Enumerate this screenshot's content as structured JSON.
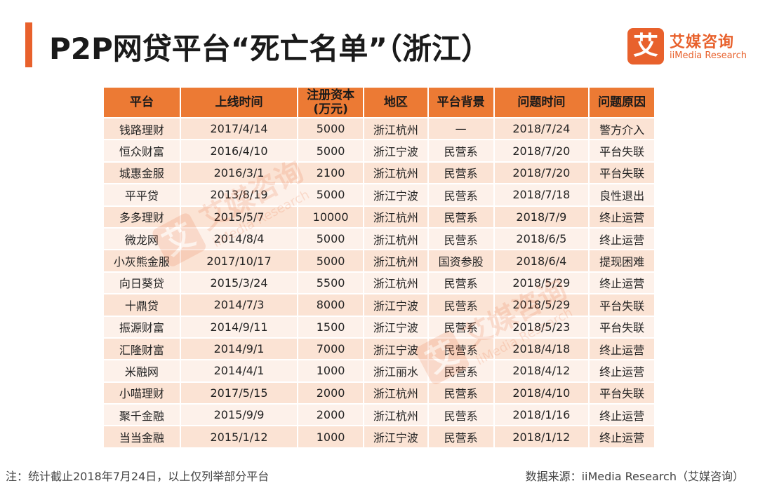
{
  "title": "P2P网贷平台“死亡名单”（浙江）",
  "logo": {
    "mark": "艾",
    "cn": "艾媒咨询",
    "en": "iiMedia Research"
  },
  "watermark": {
    "mark": "艾",
    "cn": "艾媒咨询",
    "en": "iiMedia Research"
  },
  "colors": {
    "accent": "#e8612c",
    "header": "#ec7a34",
    "row_odd": "#fbe3d4",
    "row_even": "#fdf1ea"
  },
  "table": {
    "headers": [
      "平台",
      "上线时间",
      "注册资本\n(万元)",
      "地区",
      "平台背景",
      "问题时间",
      "问题原因"
    ],
    "rows": [
      [
        "钱路理财",
        "2017/4/14",
        "5000",
        "浙江杭州",
        "—",
        "2018/7/24",
        "警方介入"
      ],
      [
        "恒众财富",
        "2016/4/10",
        "5000",
        "浙江宁波",
        "民营系",
        "2018/7/20",
        "平台失联"
      ],
      [
        "城惠金服",
        "2016/3/1",
        "2100",
        "浙江杭州",
        "民营系",
        "2018/7/20",
        "平台失联"
      ],
      [
        "平平贷",
        "2013/8/19",
        "5000",
        "浙江宁波",
        "民营系",
        "2018/7/18",
        "良性退出"
      ],
      [
        "多多理财",
        "2015/5/7",
        "10000",
        "浙江杭州",
        "民营系",
        "2018/7/9",
        "终止运营"
      ],
      [
        "微龙网",
        "2014/8/4",
        "5000",
        "浙江杭州",
        "民营系",
        "2018/6/5",
        "终止运营"
      ],
      [
        "小灰熊金服",
        "2017/10/17",
        "5000",
        "浙江杭州",
        "国资参股",
        "2018/6/4",
        "提现困难"
      ],
      [
        "向日葵贷",
        "2015/3/24",
        "5500",
        "浙江杭州",
        "民营系",
        "2018/5/29",
        "终止运营"
      ],
      [
        "十鼎贷",
        "2014/7/3",
        "8000",
        "浙江宁波",
        "民营系",
        "2018/5/29",
        "平台失联"
      ],
      [
        "振源财富",
        "2014/9/11",
        "1500",
        "浙江宁波",
        "民营系",
        "2018/5/23",
        "平台失联"
      ],
      [
        "汇隆财富",
        "2014/9/1",
        "7000",
        "浙江宁波",
        "民营系",
        "2018/4/18",
        "终止运营"
      ],
      [
        "米融网",
        "2014/4/1",
        "1000",
        "浙江丽水",
        "民营系",
        "2018/4/12",
        "终止运营"
      ],
      [
        "小喵理财",
        "2017/5/15",
        "2000",
        "浙江杭州",
        "民营系",
        "2018/4/10",
        "平台失联"
      ],
      [
        "聚千金融",
        "2015/9/9",
        "2000",
        "浙江杭州",
        "民营系",
        "2018/1/16",
        "终止运营"
      ],
      [
        "当当金融",
        "2015/1/12",
        "1000",
        "浙江宁波",
        "民营系",
        "2018/1/12",
        "终止运营"
      ]
    ]
  },
  "footer": {
    "note": "注：统计截止2018年7月24日，以上仅列举部分平台",
    "source": "数据来源：iiMedia Research（艾媒咨询）"
  }
}
